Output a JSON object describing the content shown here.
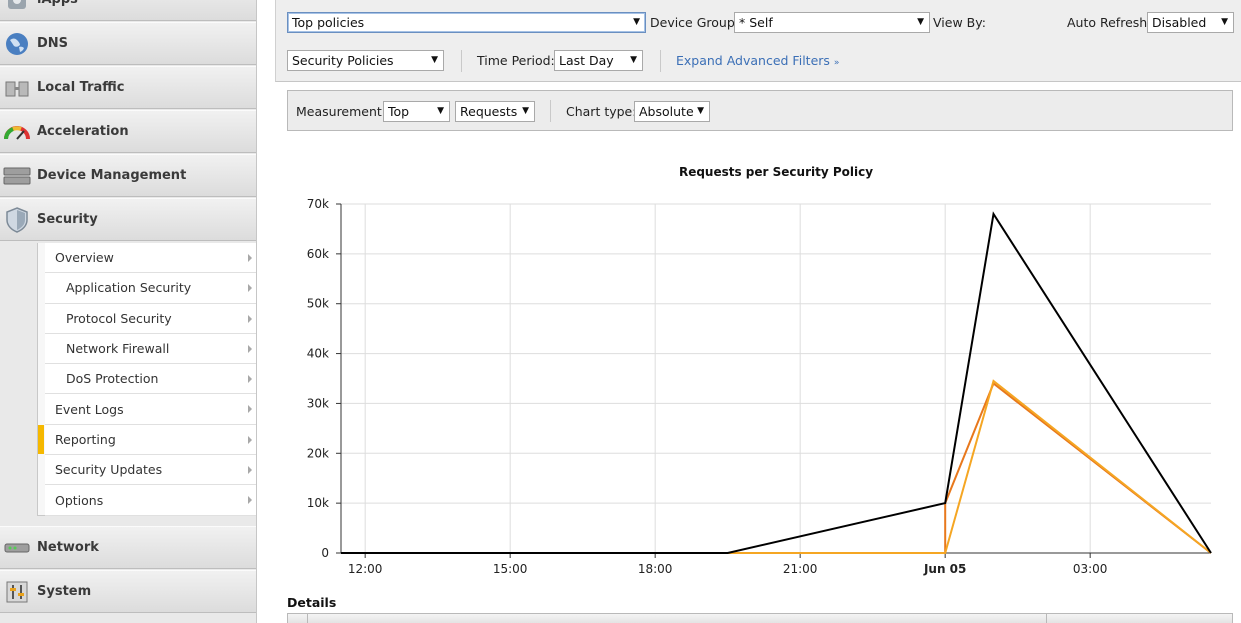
{
  "sidebar": {
    "top_items": [
      {
        "label": "iApps",
        "icon": "iapps-icon"
      },
      {
        "label": "DNS",
        "icon": "globe-icon"
      },
      {
        "label": "Local Traffic",
        "icon": "local-traffic-icon"
      },
      {
        "label": "Acceleration",
        "icon": "gauge-icon"
      },
      {
        "label": "Device Management",
        "icon": "server-icon"
      },
      {
        "label": "Security",
        "icon": "shield-icon"
      }
    ],
    "security_submenu": [
      {
        "label": "Overview"
      },
      {
        "label": "Application Security"
      },
      {
        "label": "Protocol Security"
      },
      {
        "label": "Network Firewall"
      },
      {
        "label": "DoS Protection"
      },
      {
        "label": "Event Logs"
      },
      {
        "label": "Reporting"
      },
      {
        "label": "Security Updates"
      },
      {
        "label": "Options"
      }
    ],
    "bottom_items": [
      {
        "label": "Network",
        "icon": "network-icon"
      },
      {
        "label": "System",
        "icon": "system-icon"
      }
    ]
  },
  "toolbar": {
    "view_select": "Top policies",
    "device_group_label": "Device Group:",
    "device_group_value": "* Self",
    "view_by_label": "View By:",
    "auto_refresh_label": "Auto Refresh",
    "auto_refresh_value": "Disabled",
    "policy_type_value": "Security Policies",
    "time_period_label": "Time Period:",
    "time_period_value": "Last Day",
    "expand_filters": "Expand Advanced Filters"
  },
  "measurement_bar": {
    "measurement_label": "Measurement:",
    "measurement_value": "Top",
    "metric_value": "Requests",
    "chart_type_label": "Chart type:",
    "chart_type_value": "Absolute"
  },
  "chart_data": {
    "type": "line",
    "title": "Requests per Security Policy",
    "xlabel": "",
    "ylabel": "",
    "x_ticks": [
      "12:00",
      "15:00",
      "18:00",
      "21:00",
      "Jun 05",
      "03:00"
    ],
    "y_ticks": [
      "0",
      "10k",
      "20k",
      "30k",
      "40k",
      "50k",
      "60k",
      "70k"
    ],
    "ylim": [
      0,
      70000
    ],
    "x_range_hours": [
      11.5,
      29.5
    ],
    "grid": true,
    "series": [
      {
        "color": "#000000",
        "points": [
          [
            11.5,
            0
          ],
          [
            19.5,
            0
          ],
          [
            24,
            10000
          ],
          [
            25,
            68000
          ],
          [
            29.5,
            0
          ]
        ]
      },
      {
        "color": "#e8781c",
        "points": [
          [
            11.5,
            0
          ],
          [
            24,
            0
          ],
          [
            24,
            10000
          ],
          [
            25,
            34000
          ],
          [
            29.5,
            0
          ]
        ]
      },
      {
        "color": "#f5a623",
        "points": [
          [
            11.5,
            0
          ],
          [
            24,
            0
          ],
          [
            25,
            34500
          ],
          [
            29.5,
            0
          ]
        ]
      }
    ]
  },
  "details": {
    "heading": "Details"
  }
}
